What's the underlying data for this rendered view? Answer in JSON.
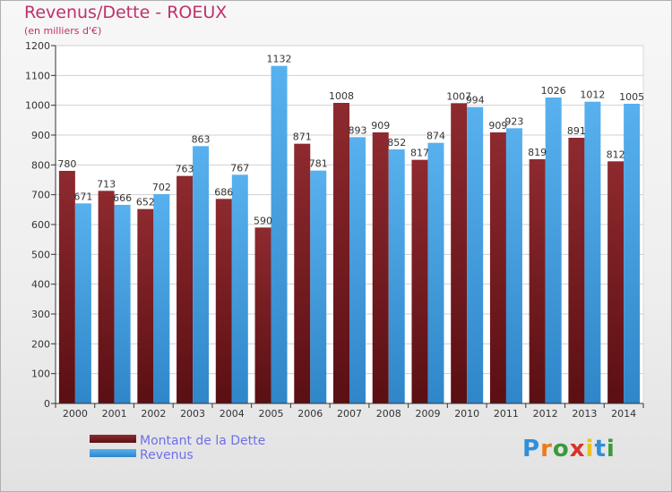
{
  "header": {
    "title": "Revenus/Dette - ROEUX",
    "subtitle": "(en milliers d'€)"
  },
  "brand": {
    "text": "Proxiti",
    "letters": [
      "P",
      "r",
      "o",
      "x",
      "i",
      "t",
      "i"
    ],
    "colors": [
      "#2f8fd8",
      "#e97d1c",
      "#3a9a3a",
      "#d8332b",
      "#e9c21c",
      "#2f8fd8",
      "#3a9a3a"
    ]
  },
  "colors": {
    "dette": "#7a1f24",
    "revenus": "#4aa3e2",
    "axis": "#333333",
    "grid": "#d0d0d0"
  },
  "chart_data": {
    "type": "bar",
    "title": "Revenus/Dette - ROEUX",
    "subtitle": "(en milliers d'€)",
    "categories": [
      "2000",
      "2001",
      "2002",
      "2003",
      "2004",
      "2005",
      "2006",
      "2007",
      "2008",
      "2009",
      "2010",
      "2011",
      "2012",
      "2013",
      "2014"
    ],
    "series": [
      {
        "name": "Montant de la Dette",
        "color": "#7a1f24",
        "values": [
          780,
          713,
          652,
          763,
          686,
          590,
          871,
          1008,
          909,
          817,
          1007,
          909,
          819,
          891,
          812
        ]
      },
      {
        "name": "Revenus",
        "color": "#4aa3e2",
        "values": [
          671,
          666,
          702,
          863,
          767,
          1132,
          781,
          893,
          852,
          874,
          994,
          923,
          1026,
          1012,
          1005
        ]
      }
    ],
    "ylim": [
      0,
      1200
    ],
    "yticks": [
      0,
      100,
      200,
      300,
      400,
      500,
      600,
      700,
      800,
      900,
      1000,
      1100,
      1200
    ],
    "grid": true,
    "legend": "bottom-left"
  }
}
